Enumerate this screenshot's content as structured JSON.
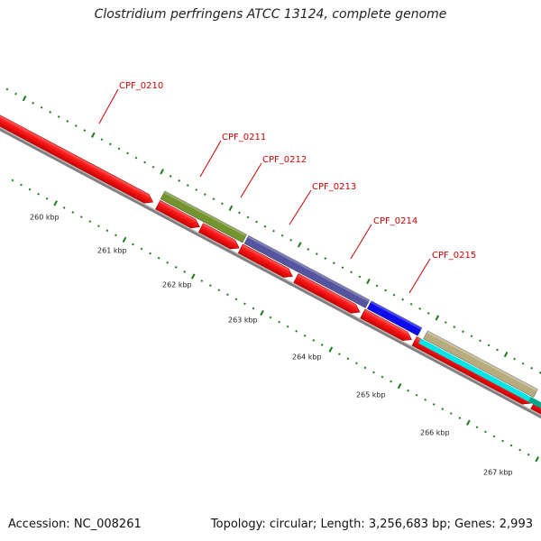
{
  "title": "Clostridium perfringens ATCC 13124, complete genome",
  "footer": {
    "accession": "Accession: NC_008261",
    "summary": "Topology: circular; Length: 3,256,683 bp; Genes: 2,993"
  },
  "scale_labels": [
    "260 kbp",
    "261 kbp",
    "262 kbp",
    "263 kbp",
    "264 kbp",
    "265 kbp",
    "266 kbp",
    "267 kbp"
  ],
  "gene_labels": [
    "CPF_0210",
    "CPF_0211",
    "CPF_0212",
    "CPF_0213",
    "CPF_0214",
    "CPF_0215"
  ],
  "colors": {
    "cds": "#ff0000",
    "backbone": "#808080",
    "ticks": "#1a7a1a",
    "label": "#cc0000",
    "feature_olive": "#6b8e23",
    "feature_slate": "#4b4b9b",
    "feature_blue": "#0000ee",
    "feature_tan": "#b5a878",
    "feature_cyan": "#00e5e5",
    "feature_teal": "#00a88a"
  }
}
